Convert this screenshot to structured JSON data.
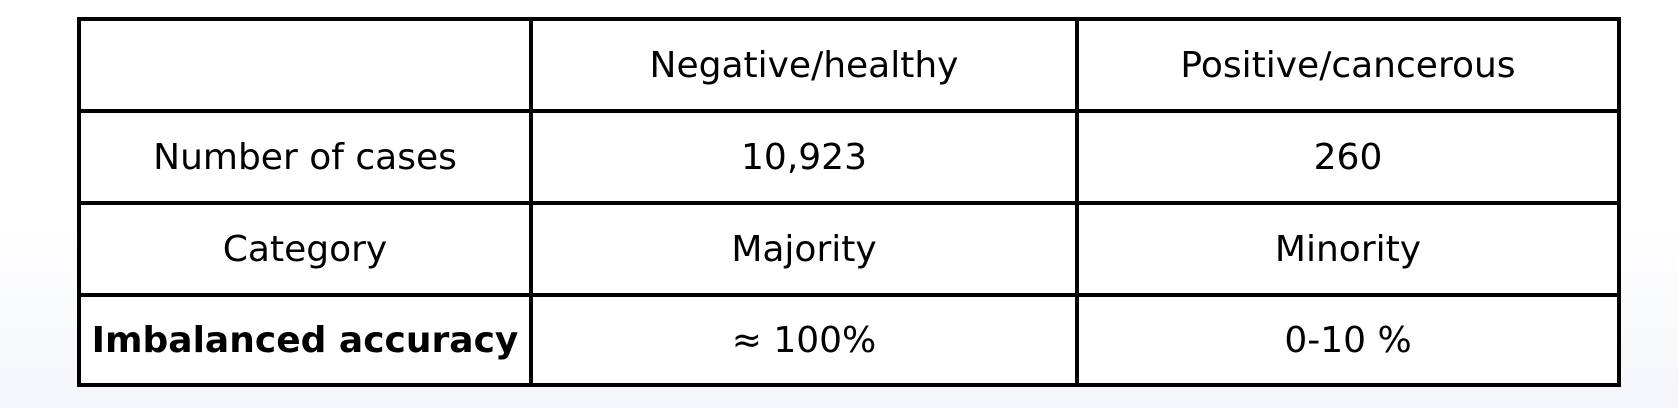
{
  "table": {
    "headers": [
      "",
      "Negative/healthy",
      "Positive/cancerous"
    ],
    "rows": [
      {
        "label": "Number of cases",
        "negative": "10,923",
        "positive": "260"
      },
      {
        "label": "Category",
        "negative": "Majority",
        "positive": "Minority"
      },
      {
        "label": "Imbalanced accuracy",
        "negative": "≈ 100%",
        "positive": "0-10 %"
      }
    ]
  }
}
